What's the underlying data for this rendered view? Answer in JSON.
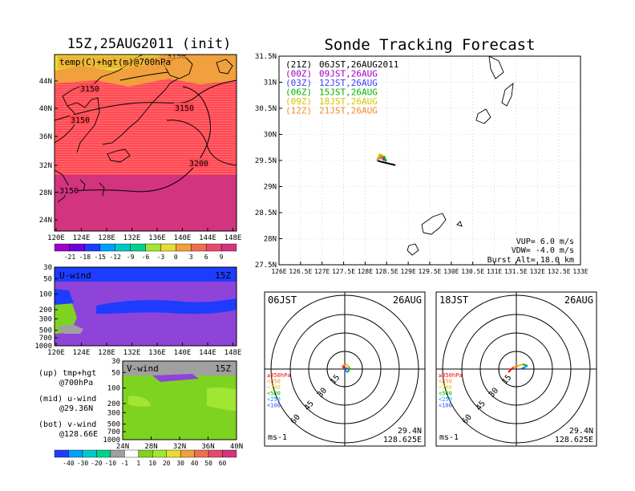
{
  "header": {
    "left_title": "15Z,25AUG2011 (init)",
    "right_title": "Sonde Tracking Forecast"
  },
  "colors": {
    "temp_levels": [
      "#a100c8",
      "#6e00dc",
      "#1e3cff",
      "#00a0ff",
      "#00c8c8",
      "#00d28c",
      "#a0e632",
      "#e6dc32",
      "#f0a03c",
      "#f06e50",
      "#e64b6e",
      "#d2347f"
    ],
    "wind_levels": [
      "#1e3cff",
      "#00a0ff",
      "#00c8c8",
      "#00d28c",
      "#a0a0a0",
      "#ffffff",
      "#7ed321",
      "#a0e632",
      "#e6dc32",
      "#f0a03c",
      "#f06e50",
      "#e64b6e",
      "#d2347f"
    ],
    "track_colors": [
      "#000000",
      "#a000c8",
      "#3c3cff",
      "#00b400",
      "#d2c800",
      "#f08c28"
    ]
  },
  "map_panel": {
    "label": "temp(C)+hgt(m)@700hPa",
    "lat_ticks": [
      "44N",
      "40N",
      "36N",
      "32N",
      "28N",
      "24N"
    ],
    "lon_ticks": [
      "120E",
      "124E",
      "128E",
      "132E",
      "136E",
      "140E",
      "144E",
      "148E"
    ],
    "contour_labels": [
      "3150",
      "3150",
      "3150",
      "3150",
      "3200",
      "3150",
      "3150"
    ],
    "colorbar_ticks": [
      "-21",
      "-18",
      "-15",
      "-12",
      "-9",
      "-6",
      "-3",
      "0",
      "3",
      "6",
      "9"
    ]
  },
  "u_panel": {
    "label": "U-wind",
    "time": "15Z",
    "pressure_ticks": [
      "30",
      "50",
      "100",
      "200",
      "300",
      "500",
      "700",
      "1000"
    ],
    "lon_ticks": [
      "120E",
      "124E",
      "128E",
      "132E",
      "136E",
      "140E",
      "144E",
      "148E"
    ]
  },
  "v_panel": {
    "label": "V-wind",
    "time": "15Z",
    "pressure_ticks": [
      "30",
      "50",
      "100",
      "200",
      "300",
      "500",
      "700",
      "1000"
    ],
    "lat_ticks": [
      "24N",
      "28N",
      "32N",
      "36N",
      "40N"
    ]
  },
  "side_notes": [
    {
      "line1": "(up) tmp+hgt",
      "line2": "@700hPa"
    },
    {
      "line1": "(mid) u-wind",
      "line2": "@29.36N"
    },
    {
      "line1": "(bot) v-wind",
      "line2": "@128.66E"
    }
  ],
  "wind_colorbar_ticks": [
    "-40",
    "-30",
    "-20",
    "-10",
    "-1",
    "1",
    "10",
    "20",
    "30",
    "40",
    "50",
    "60"
  ],
  "track_panel": {
    "lat_ticks": [
      "31.5N",
      "31N",
      "30.5N",
      "30N",
      "29.5N",
      "29N",
      "28.5N",
      "28N",
      "27.5N"
    ],
    "lon_ticks": [
      "126E",
      "126.5E",
      "127E",
      "127.5E",
      "128E",
      "128.5E",
      "129E",
      "129.5E",
      "130E",
      "130.5E",
      "131E",
      "131.5E",
      "132E",
      "132.5E",
      "133E"
    ],
    "legend": [
      {
        "code": "(21Z)",
        "text": "06JST,26AUG2011"
      },
      {
        "code": "(00Z)",
        "text": "09JST,26AUG"
      },
      {
        "code": "(03Z)",
        "text": "12JST,26AUG"
      },
      {
        "code": "(06Z)",
        "text": "15JST,26AUG"
      },
      {
        "code": "(09Z)",
        "text": "18JST,26AUG"
      },
      {
        "code": "(12Z)",
        "text": "21JST,26AUG"
      }
    ],
    "vup": "VUP=  6.0  m/s",
    "vdw": "VDW= -4.0  m/s",
    "burst": "Burst Alt= 18.0  km"
  },
  "hodographs": [
    {
      "time": "06JST",
      "date": "26AUG",
      "ring_labels": [
        "15",
        "30",
        "45",
        "60"
      ],
      "levels": [
        "≥850hPa",
        "<850",
        "<700",
        "<500",
        "<250",
        "<100"
      ],
      "unit": "ms-1",
      "lat": "29.4N",
      "lon": "128.625E"
    },
    {
      "time": "18JST",
      "date": "26AUG",
      "ring_labels": [
        "15",
        "30",
        "45",
        "60"
      ],
      "levels": [
        "≥850hPa",
        "<850",
        "<700",
        "<500",
        "<250",
        "<100"
      ],
      "unit": "ms-1",
      "lat": "29.4N",
      "lon": "128.625E"
    }
  ],
  "chart_data": [
    {
      "type": "heatmap",
      "title": "15Z,25AUG2011 (init)",
      "subtitle": "temp(C)+hgt(m)@700hPa",
      "x": [
        "120E",
        "124E",
        "128E",
        "132E",
        "136E",
        "140E",
        "144E",
        "148E"
      ],
      "y": [
        "24N",
        "28N",
        "32N",
        "36N",
        "40N",
        "44N"
      ],
      "colorbar": [
        -21,
        -18,
        -15,
        -12,
        -9,
        -6,
        -3,
        0,
        3,
        6,
        9
      ],
      "contours": [
        3150,
        3200
      ]
    },
    {
      "type": "heatmap",
      "title": "U-wind",
      "subtitle": "15Z",
      "x": [
        "120E",
        "124E",
        "128E",
        "132E",
        "136E",
        "140E",
        "144E",
        "148E"
      ],
      "y": [
        1000,
        700,
        500,
        300,
        200,
        100,
        50,
        30
      ]
    },
    {
      "type": "heatmap",
      "title": "V-wind",
      "subtitle": "15Z",
      "x": [
        "24N",
        "28N",
        "32N",
        "36N",
        "40N"
      ],
      "y": [
        1000,
        700,
        500,
        300,
        200,
        100,
        50,
        30
      ],
      "colorbar": [
        -40,
        -30,
        -20,
        -10,
        -1,
        1,
        10,
        20,
        30,
        40,
        50,
        60
      ]
    },
    {
      "type": "line",
      "title": "Sonde Tracking Forecast",
      "xlim": [
        126,
        133
      ],
      "ylim": [
        27.5,
        31.5
      ],
      "series": [
        {
          "name": "(21Z) 06JST,26AUG2011",
          "x": [
            128.28,
            128.35,
            128.45,
            128.55,
            128.7
          ],
          "y": [
            29.5,
            29.48,
            29.46,
            29.44,
            29.41
          ]
        },
        {
          "name": "(00Z) 09JST,26AUG",
          "x": [
            128.28,
            128.3,
            128.38,
            128.45
          ],
          "y": [
            29.5,
            29.55,
            29.54,
            29.5
          ]
        },
        {
          "name": "(03Z) 12JST,26AUG",
          "x": [
            128.28,
            128.32,
            128.42,
            128.5
          ],
          "y": [
            29.5,
            29.56,
            29.55,
            29.49
          ]
        },
        {
          "name": "(06Z) 15JST,26AUG",
          "x": [
            128.28,
            128.33,
            128.45,
            128.48
          ],
          "y": [
            29.5,
            29.59,
            29.57,
            29.48
          ]
        },
        {
          "name": "(09Z) 18JST,26AUG",
          "x": [
            128.28,
            128.34,
            128.43
          ],
          "y": [
            29.5,
            29.62,
            29.58
          ]
        },
        {
          "name": "(12Z) 21JST,26AUG",
          "x": [
            128.28,
            128.36,
            128.41
          ],
          "y": [
            29.5,
            29.57,
            29.52
          ]
        }
      ]
    }
  ]
}
